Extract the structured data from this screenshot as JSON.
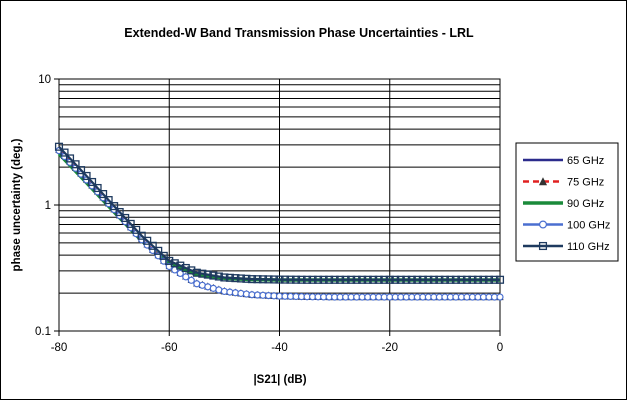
{
  "chart_data": {
    "type": "line",
    "title": "Extended-W Band Transmission Phase Uncertainties - LRL",
    "xlabel": "|S21| (dB)",
    "ylabel": "phase uncertainty (deg.)",
    "xlim": [
      -80,
      0
    ],
    "ylim": [
      0.1,
      10
    ],
    "yscale": "log",
    "x_ticks": [
      -80,
      -60,
      -40,
      -20,
      0
    ],
    "x_tick_labels": [
      "-80",
      "-60",
      "-40",
      "-20",
      "0"
    ],
    "y_tick_labels": [
      "0.1",
      "1",
      "10"
    ],
    "grid": "horizontal major and minor",
    "legend_position": "right",
    "x": [
      -80,
      -75,
      -70,
      -65,
      -60,
      -55,
      -50,
      -45,
      -40,
      -35,
      -30,
      -25,
      -20,
      -15,
      -10,
      -5,
      0
    ],
    "series": [
      {
        "name": "65 GHz",
        "color": "#2B2B8C",
        "marker": "none",
        "dash": "solid",
        "values": [
          2.65,
          1.55,
          0.9,
          0.52,
          0.32,
          0.235,
          0.205,
          0.193,
          0.188,
          0.187,
          0.186,
          0.186,
          0.186,
          0.186,
          0.186,
          0.186,
          0.186
        ]
      },
      {
        "name": "75 GHz",
        "color": "#E02020",
        "marker": "triangle",
        "dash": "dashed",
        "values": [
          2.75,
          1.6,
          0.93,
          0.54,
          0.33,
          0.24,
          0.208,
          0.195,
          0.19,
          0.188,
          0.187,
          0.187,
          0.187,
          0.187,
          0.187,
          0.187,
          0.187
        ]
      },
      {
        "name": "90 GHz",
        "color": "#1A8A3A",
        "marker": "none",
        "dash": "solid",
        "values": [
          2.55,
          1.5,
          0.88,
          0.52,
          0.34,
          0.28,
          0.262,
          0.256,
          0.254,
          0.254,
          0.254,
          0.254,
          0.254,
          0.254,
          0.254,
          0.254,
          0.254
        ]
      },
      {
        "name": "100 GHz",
        "color": "#4A6FD0",
        "marker": "circle",
        "dash": "solid",
        "values": [
          2.7,
          1.58,
          0.92,
          0.53,
          0.325,
          0.237,
          0.206,
          0.194,
          0.189,
          0.187,
          0.186,
          0.186,
          0.186,
          0.186,
          0.186,
          0.186,
          0.186
        ]
      },
      {
        "name": "110 GHz",
        "color": "#1E3A5F",
        "marker": "square",
        "dash": "solid",
        "values": [
          2.9,
          1.7,
          0.98,
          0.57,
          0.36,
          0.29,
          0.266,
          0.258,
          0.256,
          0.255,
          0.255,
          0.255,
          0.255,
          0.255,
          0.255,
          0.255,
          0.255
        ]
      }
    ]
  }
}
